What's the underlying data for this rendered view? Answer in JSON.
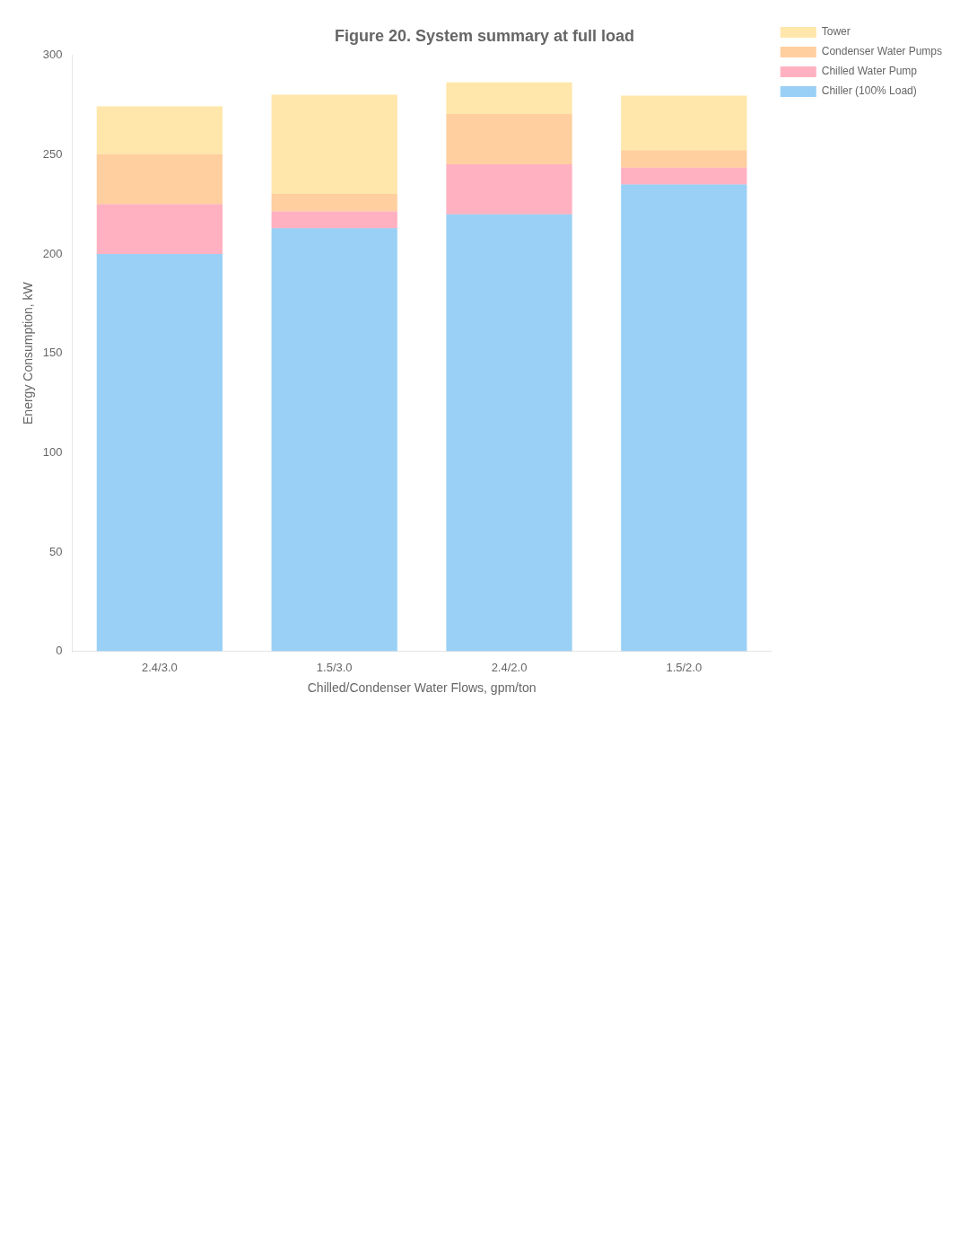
{
  "chart_data": {
    "type": "bar",
    "title": "Figure 20. System summary at full load",
    "xlabel": "Chilled/Condenser Water Flows, gpm/ton",
    "ylabel": "Energy Consumption, kW",
    "categories": [
      "2.4/3.0",
      "1.5/3.0",
      "2.4/2.0",
      "1.5/2.0"
    ],
    "series": [
      {
        "name": "Chiller (100% Load)",
        "values": [
          200.0,
          213.0,
          220.0,
          235.0
        ]
      },
      {
        "name": "Chilled Water Pump",
        "values": [
          25.0,
          8.4,
          25.2,
          8.4
        ]
      },
      {
        "name": "Condenser Water Pumps",
        "values": [
          25.2,
          8.8,
          25.2,
          8.8
        ]
      },
      {
        "name": "Tower",
        "values": [
          24.1,
          50.0,
          16.0,
          27.5
        ]
      }
    ],
    "stacked": true,
    "ylim": [
      0,
      300
    ],
    "yticks": [
      0,
      50,
      100,
      150,
      200,
      250,
      300
    ],
    "grid": false,
    "legend": "right"
  }
}
